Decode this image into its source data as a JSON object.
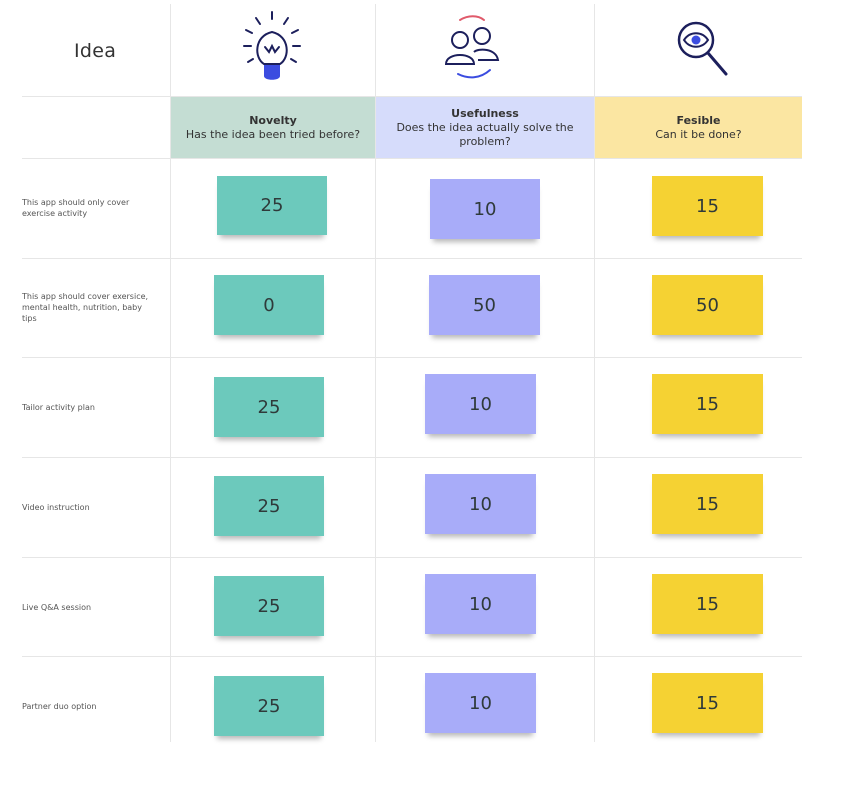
{
  "header": {
    "idea_label": "Idea",
    "columns": [
      {
        "title": "Novelty",
        "subtitle": "Has the idea been tried before?",
        "color": "#c4ddd3",
        "icon": "lightbulb-icon"
      },
      {
        "title": "Usefulness",
        "subtitle": "Does the idea actually solve the problem?",
        "color": "#d6dcfb",
        "icon": "users-icon"
      },
      {
        "title": "Fesible",
        "subtitle": "Can it be done?",
        "color": "#fbe6a2",
        "icon": "magnifier-eye-icon"
      }
    ]
  },
  "rows": [
    {
      "idea": "This app should only cover exercise activity",
      "novelty": "25",
      "usefulness": "10",
      "feasible": "15"
    },
    {
      "idea": "This app should cover exersice, mental health, nutrition, baby tips",
      "novelty": "0",
      "usefulness": "50",
      "feasible": "50"
    },
    {
      "idea": "Tailor activity plan",
      "novelty": "25",
      "usefulness": "10",
      "feasible": "15"
    },
    {
      "idea": "Video instruction",
      "novelty": "25",
      "usefulness": "10",
      "feasible": "15"
    },
    {
      "idea": "Live Q&A session",
      "novelty": "25",
      "usefulness": "10",
      "feasible": "15"
    },
    {
      "idea": "Partner duo option",
      "novelty": "25",
      "usefulness": "10",
      "feasible": "15"
    }
  ],
  "colors": {
    "teal_sticky": "#6cc9bc",
    "purple_sticky": "#a8acf9",
    "yellow_sticky": "#f5d233",
    "icon_navy": "#1c1f5c",
    "icon_blue": "#3b4ce0"
  }
}
